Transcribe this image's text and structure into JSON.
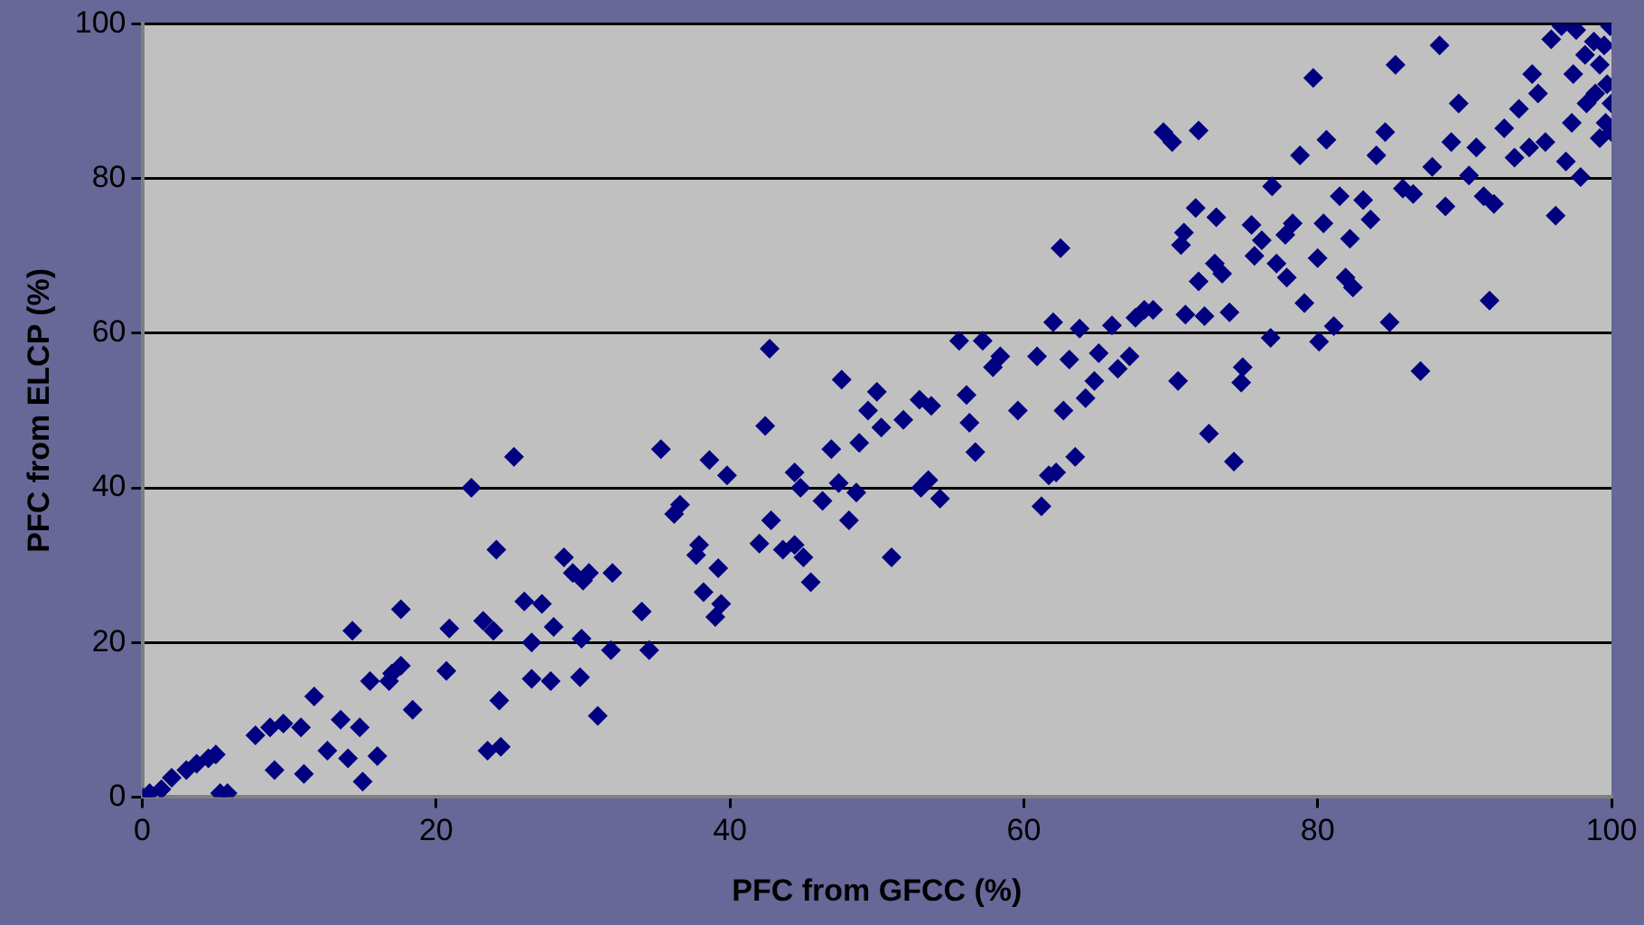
{
  "chart_data": {
    "type": "scatter",
    "xlabel": "PFC from GFCC (%)",
    "ylabel": "PFC from ELCP (%)",
    "color": "#000080",
    "marker": "diamond",
    "grid": "y",
    "xlim": [
      0,
      100
    ],
    "xticks": [
      0,
      20,
      40,
      60,
      80,
      100
    ],
    "ylim": [
      0,
      100
    ],
    "yticks": [
      0,
      20,
      40,
      60,
      80,
      100
    ],
    "x": [
      0,
      0.5,
      1.3,
      2,
      3,
      3.7,
      4.5,
      5,
      5.3,
      5.8,
      7.7,
      8.7,
      9,
      9.6,
      10.8,
      11,
      11.7,
      12.6,
      13.5,
      14,
      14.3,
      14.8,
      15,
      15.5,
      16,
      16.8,
      17,
      17.6,
      17.6,
      18.4,
      20.7,
      20.9,
      22.4,
      23.2,
      23.5,
      23.9,
      24.1,
      24.4,
      24.3,
      25.3,
      26,
      26.5,
      27.2,
      26.5,
      28,
      27.8,
      28.7,
      29.3,
      29.8,
      29.9,
      30,
      30.4,
      31,
      32,
      31.9,
      34,
      34.5,
      35.3,
      36.2,
      36.6,
      37.7,
      37.9,
      38.6,
      38.2,
      39,
      39.4,
      39.2,
      39.8,
      42,
      42.4,
      42.7,
      42.8,
      43.6,
      44.4,
      44.4,
      44.8,
      45,
      45.5,
      46.3,
      46.9,
      47.4,
      47.6,
      48.1,
      48.6,
      48.8,
      49.4,
      50,
      50.3,
      51,
      51.8,
      52.9,
      53,
      53.5,
      53.7,
      54.3,
      55.6,
      56.1,
      56.3,
      56.7,
      57.2,
      57.9,
      58.4,
      59.6,
      60.9,
      61.2,
      61.7,
      62,
      62.2,
      62.5,
      62.7,
      63.1,
      63.5,
      63.8,
      64.2,
      64.8,
      65.1,
      66,
      66.4,
      67.2,
      67.6,
      68.2,
      68.8,
      69.5,
      70.1,
      70.5,
      70.7,
      70.9,
      71,
      71.7,
      71.9,
      71.9,
      72.3,
      72.6,
      73,
      73.1,
      73.5,
      74,
      74.3,
      74.8,
      74.9,
      75.5,
      75.7,
      76.2,
      76.8,
      76.9,
      77.2,
      77.8,
      77.9,
      78.3,
      78.8,
      79.1,
      79.7,
      80,
      80.1,
      80.4,
      80.6,
      81.1,
      81.5,
      81.9,
      82.2,
      82.4,
      83.1,
      83.6,
      84,
      84.6,
      84.9,
      85.3,
      85.8,
      86.5,
      87,
      87.8,
      88.3,
      88.7,
      89.1,
      89.6,
      90.3,
      90.8,
      91.3,
      91.7,
      92,
      92.7,
      93.4,
      93.7,
      94.4,
      95,
      95.5,
      96.2,
      96.6,
      96.9,
      97.4,
      97.9,
      98.3,
      98.8,
      99.2,
      99.6,
      99.9,
      99.7,
      99.5,
      98.9,
      98.2,
      97.6,
      100,
      100,
      99.2,
      95.9,
      94.6,
      97.3
    ],
    "values": [
      0,
      0.5,
      1,
      2.5,
      3.5,
      4.3,
      5,
      5.5,
      0.5,
      0.5,
      8,
      9,
      3.5,
      9.5,
      9,
      3,
      13,
      6,
      10,
      5,
      21.5,
      9,
      2,
      15,
      5.3,
      15,
      16,
      24.3,
      17,
      11.3,
      16.3,
      21.8,
      40,
      22.8,
      6,
      21.5,
      32,
      6.5,
      12.5,
      44,
      25.3,
      15.3,
      25,
      20,
      22,
      15,
      31,
      29,
      15.5,
      20.5,
      28,
      29,
      10.5,
      29,
      19,
      24,
      19,
      45,
      36.6,
      37.8,
      31.3,
      32.6,
      43.6,
      26.5,
      23.3,
      25,
      29.6,
      41.6,
      32.8,
      48,
      58,
      35.8,
      32,
      32.6,
      42,
      40,
      31,
      27.8,
      38.3,
      45,
      40.6,
      54,
      35.8,
      39.4,
      45.8,
      50,
      52.4,
      47.8,
      31,
      48.8,
      51.4,
      40,
      41,
      50.6,
      38.6,
      59,
      52,
      48.4,
      44.6,
      59,
      55.6,
      57,
      50,
      57,
      37.6,
      41.6,
      61.4,
      42,
      71,
      50,
      56.6,
      44,
      60.6,
      51.6,
      53.8,
      57.4,
      61,
      55.4,
      57,
      62,
      63,
      63,
      86,
      84.7,
      53.8,
      71.4,
      73,
      62.4,
      76.2,
      86.2,
      66.7,
      62.2,
      47,
      69,
      75,
      67.7,
      62.7,
      43.4,
      53.6,
      55.6,
      74,
      70,
      72,
      59.4,
      79,
      69,
      72.7,
      67.2,
      74.2,
      83,
      63.9,
      93,
      69.7,
      58.9,
      74.2,
      85,
      60.9,
      77.7,
      67.2,
      72.2,
      65.9,
      77.2,
      74.7,
      83,
      86,
      61.4,
      94.7,
      78.7,
      78,
      55.1,
      81.5,
      97.2,
      76.4,
      84.7,
      89.7,
      80.4,
      84,
      77.7,
      64.2,
      76.7,
      86.5,
      82.7,
      89,
      84,
      91,
      84.7,
      75.2,
      99.7,
      82.2,
      93.5,
      80.2,
      89.7,
      97.7,
      94.7,
      87.2,
      99.7,
      92.2,
      97.2,
      91,
      96,
      99.2,
      89.7,
      86,
      85.2,
      98,
      93.5,
      87.2
    ]
  }
}
